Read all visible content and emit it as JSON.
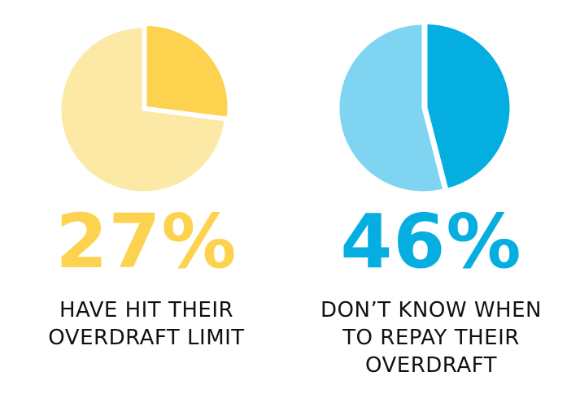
{
  "chart_data": [
    {
      "type": "pie",
      "values": [
        27,
        73
      ],
      "colors": [
        "#FDD24F",
        "#FCE9A6"
      ],
      "highlight_index": 0,
      "label": "27%",
      "caption_lines": [
        "HAVE HIT THEIR",
        "OVERDRAFT LIMIT"
      ]
    },
    {
      "type": "pie",
      "values": [
        46,
        54
      ],
      "colors": [
        "#05AEE0",
        "#7FD5F1"
      ],
      "highlight_index": 0,
      "label": "46%",
      "caption_lines": [
        "DON’T KNOW WHEN",
        "TO REPAY THEIR",
        "OVERDRAFT"
      ]
    }
  ],
  "colors": {
    "left_accent": "#FDD24F",
    "right_accent": "#05AEE0",
    "caption_text": "#111111",
    "background": "#FFFFFF"
  }
}
